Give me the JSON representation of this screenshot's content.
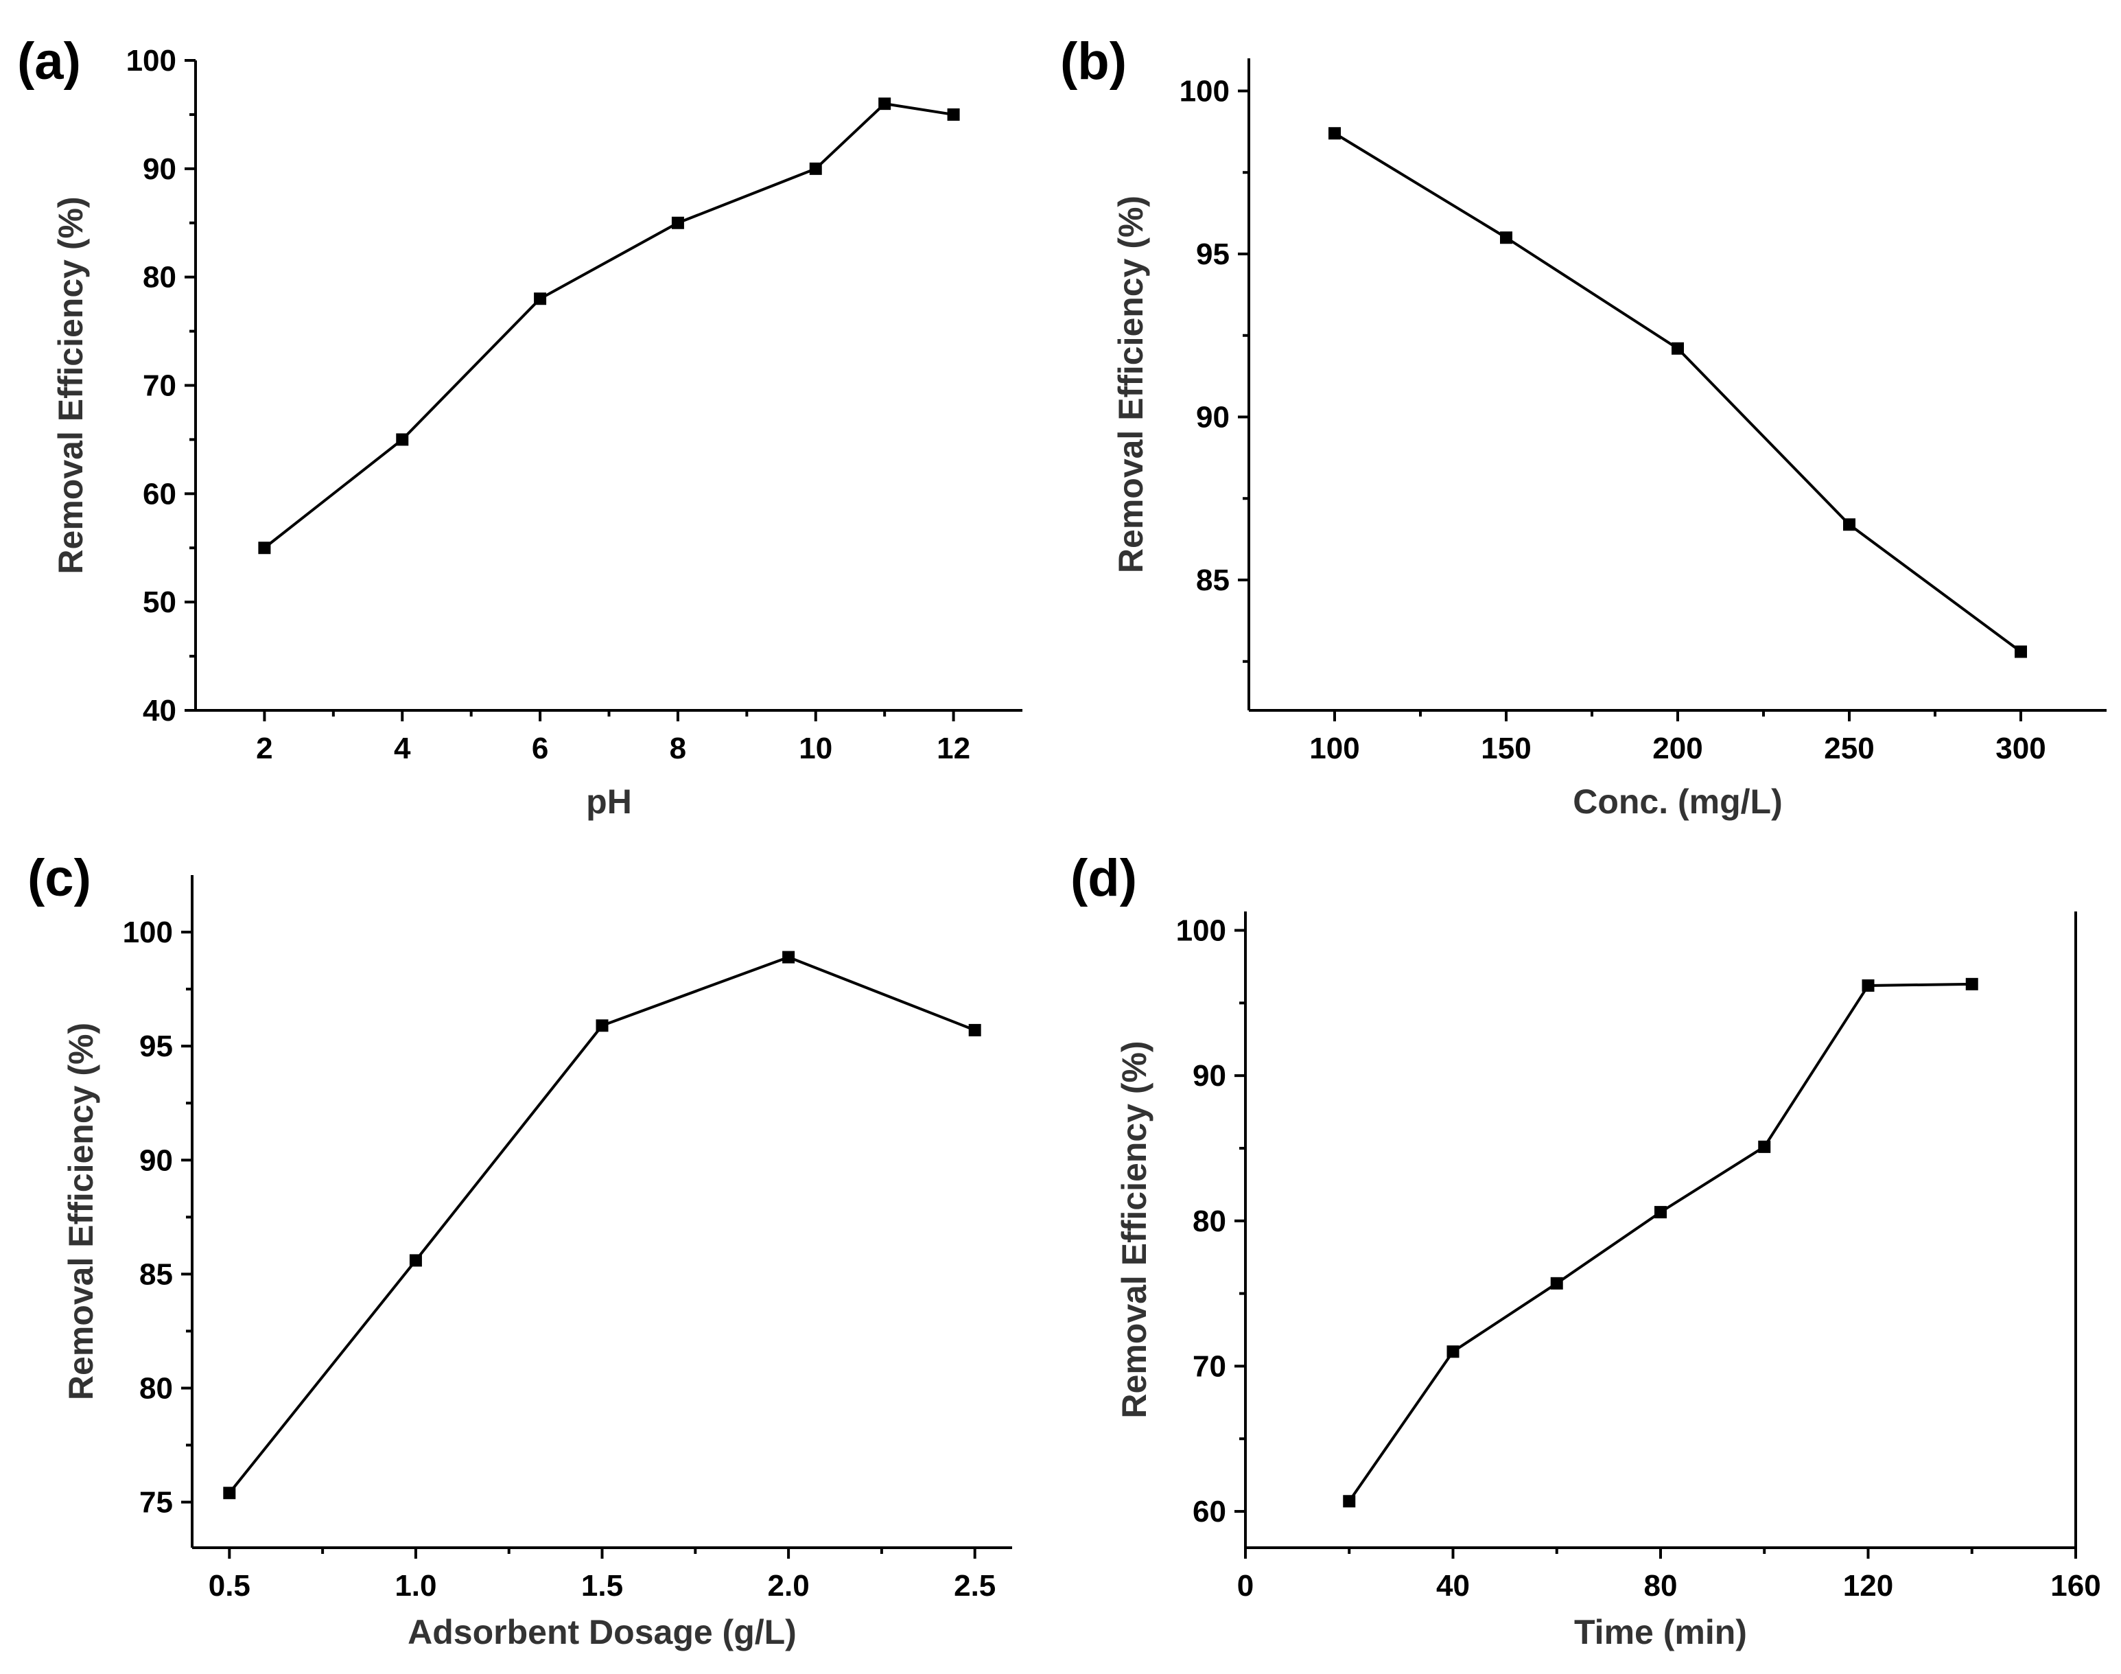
{
  "chart_data": [
    {
      "type": "line",
      "panel": "(a)",
      "title": "",
      "xlabel": "pH",
      "ylabel": "Removal Efficiency (%)",
      "xlim": [
        1,
        13
      ],
      "ylim": [
        40,
        100
      ],
      "xticks": [
        2,
        4,
        6,
        8,
        10,
        12
      ],
      "yticks": [
        40,
        50,
        60,
        70,
        80,
        90,
        100
      ],
      "x": [
        2,
        4,
        6,
        8,
        10,
        11,
        12
      ],
      "y": [
        55,
        65,
        78,
        85,
        90,
        96,
        95
      ],
      "grid": false,
      "right_axis": false
    },
    {
      "type": "line",
      "panel": "(b)",
      "title": "",
      "xlabel": "Conc. (mg/L)",
      "ylabel": "Removal Efficiency (%)",
      "xlim": [
        75,
        325
      ],
      "ylim": [
        81,
        101
      ],
      "xticks": [
        100,
        150,
        200,
        250,
        300
      ],
      "yticks": [
        85,
        90,
        95,
        100
      ],
      "x": [
        100,
        150,
        200,
        250,
        300
      ],
      "y": [
        98.7,
        95.5,
        92.1,
        86.7,
        82.8
      ],
      "grid": false,
      "right_axis": false
    },
    {
      "type": "line",
      "panel": "(c)",
      "title": "",
      "xlabel": "Adsorbent Dosage (g/L)",
      "ylabel": "Removal Efficiency (%)",
      "xlim": [
        0.4,
        2.6
      ],
      "ylim": [
        73,
        102.5
      ],
      "xticks": [
        0.5,
        1.0,
        1.5,
        2.0,
        2.5
      ],
      "xtick_labels": [
        "0.5",
        "1.0",
        "1.5",
        "2.0",
        "2.5"
      ],
      "yticks": [
        75,
        80,
        85,
        90,
        95,
        100
      ],
      "x": [
        0.5,
        1.0,
        1.5,
        2.0,
        2.5
      ],
      "y": [
        75.4,
        85.6,
        95.9,
        98.9,
        95.7
      ],
      "grid": false,
      "right_axis": false
    },
    {
      "type": "line",
      "panel": "(d)",
      "title": "",
      "xlabel": "Time (min)",
      "ylabel": "Removal Efficiency (%)",
      "xlim": [
        0,
        160
      ],
      "ylim": [
        57.5,
        101.3
      ],
      "xticks": [
        0,
        40,
        80,
        120,
        160
      ],
      "yticks": [
        60,
        70,
        80,
        90,
        100
      ],
      "x": [
        20,
        40,
        60,
        80,
        100,
        120,
        140
      ],
      "y": [
        60.7,
        71.0,
        75.7,
        80.6,
        85.1,
        96.2,
        96.3
      ],
      "grid": false,
      "right_axis": true
    }
  ]
}
